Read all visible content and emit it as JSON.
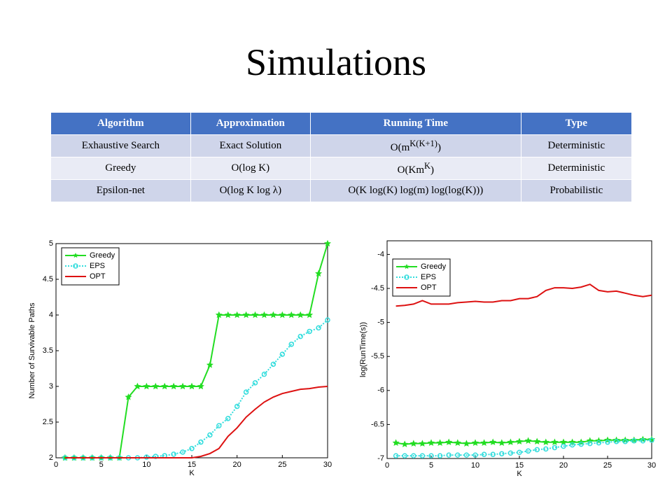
{
  "title": "Simulations",
  "table": {
    "header": [
      "Algorithm",
      "Approximation",
      "Running Time",
      "Type"
    ],
    "rows": [
      [
        "Exhaustive Search",
        "Exact Solution",
        {
          "text": "O(m",
          "sup": "K(K+1)",
          "tail": ")"
        },
        "Deterministic"
      ],
      [
        "Greedy",
        "O(log K)",
        {
          "text": "O(Km",
          "sup": "K",
          "tail": ")"
        },
        "Deterministic"
      ],
      [
        "Epsilon-net",
        "O(log K log λ)",
        "O(K log(K) log(m) log(log(K)))",
        "Probabilistic"
      ]
    ]
  },
  "chart_data": [
    {
      "type": "line",
      "xlabel": "K",
      "ylabel": "Number of Survivable Paths",
      "x": [
        1,
        2,
        3,
        4,
        5,
        6,
        7,
        8,
        9,
        10,
        11,
        12,
        13,
        14,
        15,
        16,
        17,
        18,
        19,
        20,
        21,
        22,
        23,
        24,
        25,
        26,
        27,
        28,
        29,
        30
      ],
      "series": [
        {
          "name": "Greedy",
          "color": "#22dd22",
          "dash": "solid",
          "marker": "star",
          "values": [
            2,
            2,
            2,
            2,
            2,
            2,
            2,
            2.85,
            3,
            3,
            3,
            3,
            3,
            3,
            3,
            3,
            3.3,
            4,
            4,
            4,
            4,
            4,
            4,
            4,
            4,
            4,
            4,
            4,
            4.58,
            5
          ]
        },
        {
          "name": "EPS",
          "color": "#33dddd",
          "dash": "dotted",
          "marker": "circle",
          "values": [
            2,
            2,
            2,
            2,
            2,
            2,
            2,
            2,
            2,
            2.01,
            2.02,
            2.03,
            2.05,
            2.08,
            2.13,
            2.22,
            2.32,
            2.45,
            2.55,
            2.72,
            2.92,
            3.05,
            3.17,
            3.31,
            3.45,
            3.59,
            3.7,
            3.77,
            3.82,
            3.93
          ]
        },
        {
          "name": "OPT",
          "color": "#dd1111",
          "dash": "solid",
          "marker": "none",
          "values": [
            2,
            2,
            2,
            2,
            2,
            2,
            2,
            2,
            2,
            2,
            2,
            2,
            2,
            2,
            2,
            2.02,
            2.06,
            2.13,
            2.3,
            2.42,
            2.57,
            2.68,
            2.78,
            2.85,
            2.9,
            2.93,
            2.96,
            2.97,
            2.99,
            3
          ]
        }
      ],
      "xlim": [
        0,
        30
      ],
      "ylim": [
        2,
        5
      ],
      "xticks": [
        0,
        5,
        10,
        15,
        20,
        25,
        30
      ],
      "yticks": [
        2,
        2.5,
        3,
        3.5,
        4,
        4.5,
        5
      ],
      "legend": "upper left"
    },
    {
      "type": "line",
      "xlabel": "K",
      "ylabel": "log(RunTime(s))",
      "x": [
        1,
        2,
        3,
        4,
        5,
        6,
        7,
        8,
        9,
        10,
        11,
        12,
        13,
        14,
        15,
        16,
        17,
        18,
        19,
        20,
        21,
        22,
        23,
        24,
        25,
        26,
        27,
        28,
        29,
        30
      ],
      "series": [
        {
          "name": "Greedy",
          "color": "#22dd22",
          "dash": "solid",
          "marker": "star",
          "values": [
            -6.77,
            -6.79,
            -6.78,
            -6.78,
            -6.77,
            -6.77,
            -6.76,
            -6.77,
            -6.78,
            -6.77,
            -6.77,
            -6.76,
            -6.77,
            -6.76,
            -6.75,
            -6.74,
            -6.75,
            -6.76,
            -6.76,
            -6.76,
            -6.76,
            -6.76,
            -6.74,
            -6.74,
            -6.73,
            -6.73,
            -6.73,
            -6.73,
            -6.72,
            -6.72
          ]
        },
        {
          "name": "EPS",
          "color": "#33dddd",
          "dash": "dotted",
          "marker": "circle",
          "values": [
            -6.96,
            -6.96,
            -6.96,
            -6.96,
            -6.96,
            -6.96,
            -6.95,
            -6.95,
            -6.95,
            -6.95,
            -6.94,
            -6.94,
            -6.93,
            -6.92,
            -6.91,
            -6.89,
            -6.87,
            -6.86,
            -6.84,
            -6.82,
            -6.8,
            -6.79,
            -6.78,
            -6.77,
            -6.76,
            -6.75,
            -6.75,
            -6.74,
            -6.74,
            -6.73
          ]
        },
        {
          "name": "OPT",
          "color": "#dd1111",
          "dash": "solid",
          "marker": "none",
          "values": [
            -4.76,
            -4.75,
            -4.73,
            -4.68,
            -4.73,
            -4.73,
            -4.73,
            -4.71,
            -4.7,
            -4.69,
            -4.7,
            -4.7,
            -4.68,
            -4.68,
            -4.65,
            -4.65,
            -4.62,
            -4.53,
            -4.49,
            -4.49,
            -4.5,
            -4.48,
            -4.44,
            -4.53,
            -4.55,
            -4.54,
            -4.57,
            -4.6,
            -4.62,
            -4.6
          ]
        }
      ],
      "xlim": [
        0,
        30
      ],
      "ylim": [
        -7,
        -3.8
      ],
      "xticks": [
        0,
        5,
        10,
        15,
        20,
        25,
        30
      ],
      "yticks": [
        -7,
        -6.5,
        -6,
        -5.5,
        -5,
        -4.5,
        -4
      ],
      "legend": "upper left"
    }
  ]
}
